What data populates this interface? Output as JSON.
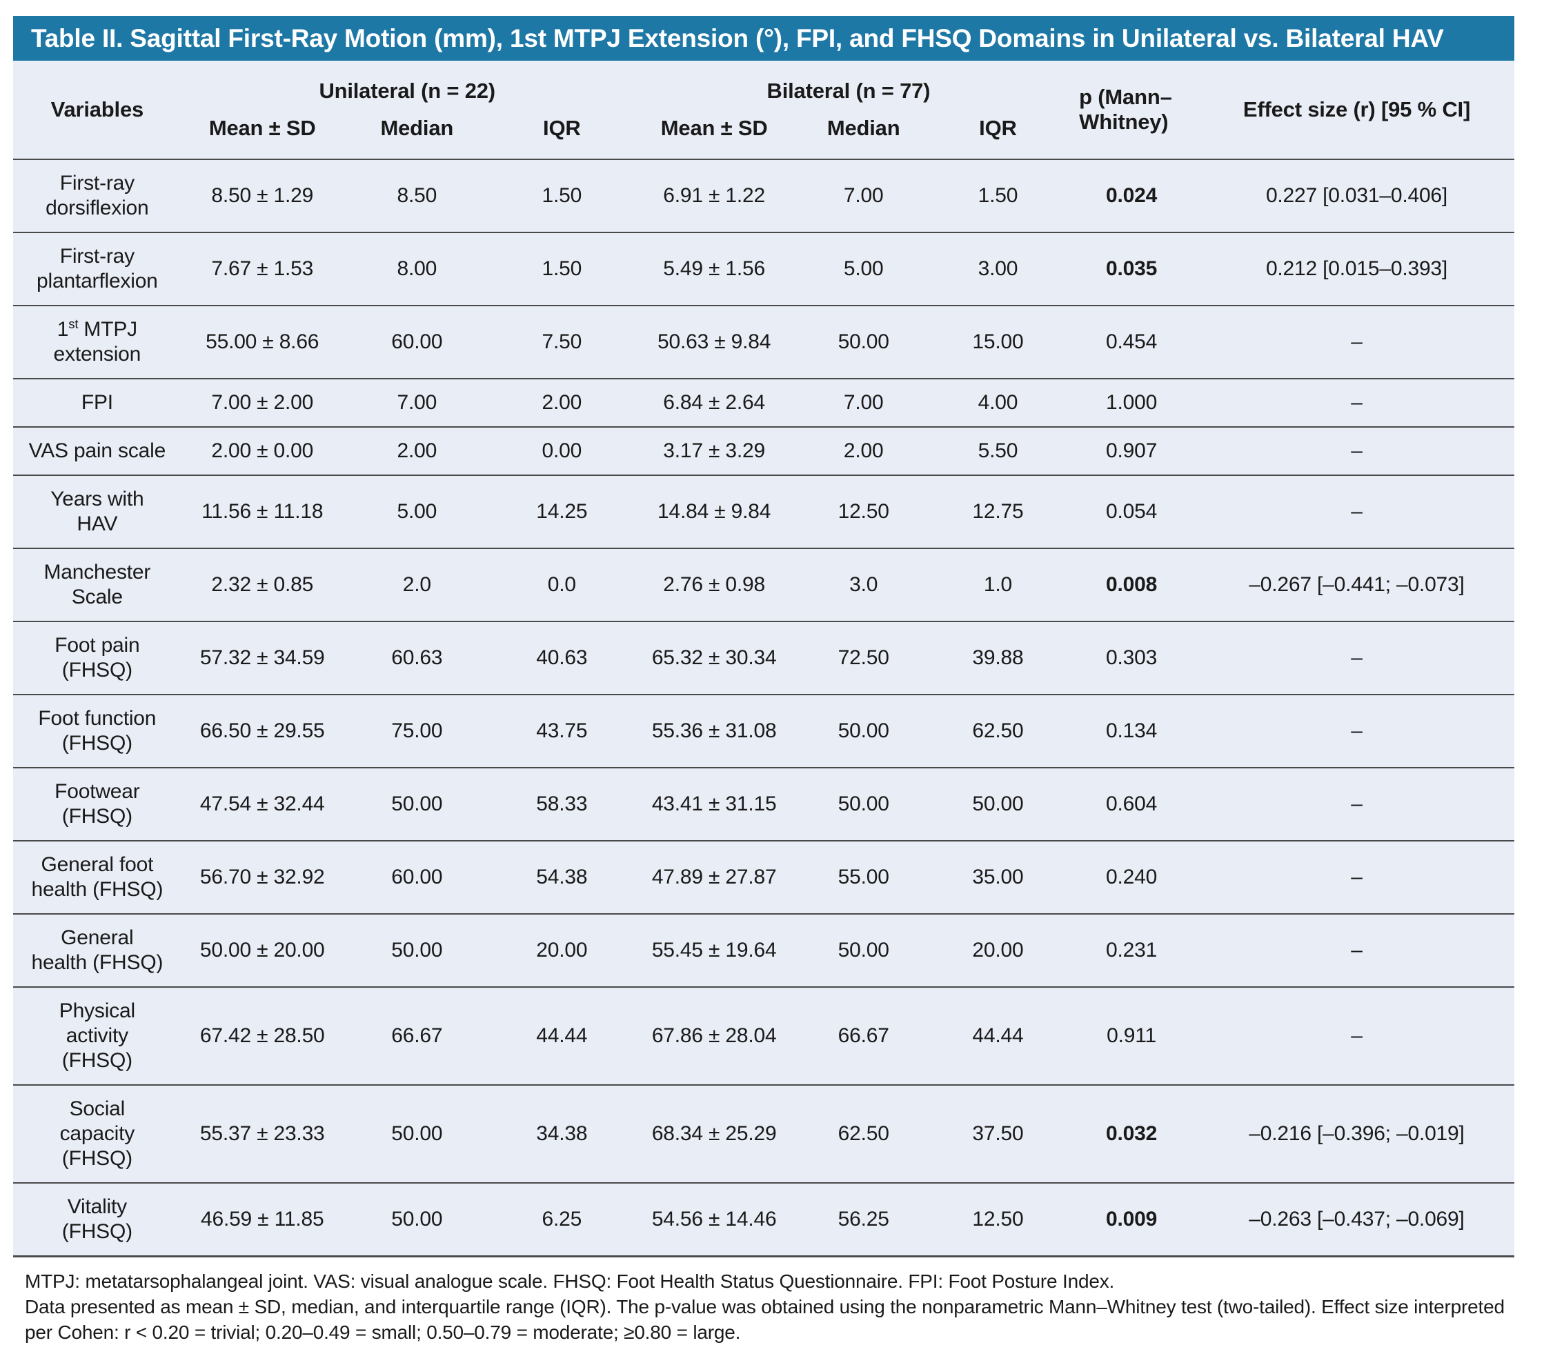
{
  "title": "Table II. Sagittal First-Ray Motion (mm), 1st MTPJ Extension (°), FPI, and FHSQ Domains in Unilateral vs. Bilateral HAV",
  "header": {
    "variables": "Variables",
    "unilateral": "Unilateral (n = 22)",
    "bilateral": "Bilateral (n = 77)",
    "sub": {
      "mean_sd": "Mean ± SD",
      "median": "Median",
      "iqr": "IQR"
    },
    "p_mann_whitney": "p (Mann–\nWhitney)",
    "effect_size": "Effect size (r) [95 % CI]"
  },
  "rows": [
    {
      "label": "First-ray\ndorsiflexion",
      "uni": [
        "8.50 ± 1.29",
        "8.50",
        "1.50"
      ],
      "bil": [
        "6.91 ± 1.22",
        "7.00",
        "1.50"
      ],
      "p": "0.024",
      "p_bold": true,
      "effect": "0.227 [0.031–0.406]"
    },
    {
      "label": "First-ray\nplantarflexion",
      "uni": [
        "7.67 ± 1.53",
        "8.00",
        "1.50"
      ],
      "bil": [
        "5.49 ± 1.56",
        "5.00",
        "3.00"
      ],
      "p": "0.035",
      "p_bold": true,
      "effect": "0.212 [0.015–0.393]"
    },
    {
      "label": "1st MTPJ\nextension",
      "label_parts": [
        "1",
        "st",
        " MTPJ\nextension"
      ],
      "uni": [
        "55.00 ± 8.66",
        "60.00",
        "7.50"
      ],
      "bil": [
        "50.63 ± 9.84",
        "50.00",
        "15.00"
      ],
      "p": "0.454",
      "p_bold": false,
      "effect": "–"
    },
    {
      "label": "FPI",
      "uni": [
        "7.00 ± 2.00",
        "7.00",
        "2.00"
      ],
      "bil": [
        "6.84 ± 2.64",
        "7.00",
        "4.00"
      ],
      "p": "1.000",
      "p_bold": false,
      "effect": "–"
    },
    {
      "label": "VAS pain scale",
      "uni": [
        "2.00 ± 0.00",
        "2.00",
        "0.00"
      ],
      "bil": [
        "3.17 ± 3.29",
        "2.00",
        "5.50"
      ],
      "p": "0.907",
      "p_bold": false,
      "effect": "–"
    },
    {
      "label": "Years with\nHAV",
      "uni": [
        "11.56 ± 11.18",
        "5.00",
        "14.25"
      ],
      "bil": [
        "14.84 ± 9.84",
        "12.50",
        "12.75"
      ],
      "p": "0.054",
      "p_bold": false,
      "effect": "–"
    },
    {
      "label": "Manchester\nScale",
      "uni": [
        "2.32 ± 0.85",
        "2.0",
        "0.0"
      ],
      "bil": [
        "2.76 ± 0.98",
        "3.0",
        "1.0"
      ],
      "p": "0.008",
      "p_bold": true,
      "effect": "–0.267 [–0.441; –0.073]"
    },
    {
      "label": "Foot pain\n(FHSQ)",
      "uni": [
        "57.32 ± 34.59",
        "60.63",
        "40.63"
      ],
      "bil": [
        "65.32 ± 30.34",
        "72.50",
        "39.88"
      ],
      "p": "0.303",
      "p_bold": false,
      "effect": "–"
    },
    {
      "label": "Foot function\n(FHSQ)",
      "uni": [
        "66.50 ± 29.55",
        "75.00",
        "43.75"
      ],
      "bil": [
        "55.36 ± 31.08",
        "50.00",
        "62.50"
      ],
      "p": "0.134",
      "p_bold": false,
      "effect": "–"
    },
    {
      "label": "Footwear\n(FHSQ)",
      "uni": [
        "47.54 ± 32.44",
        "50.00",
        "58.33"
      ],
      "bil": [
        "43.41 ± 31.15",
        "50.00",
        "50.00"
      ],
      "p": "0.604",
      "p_bold": false,
      "effect": "–"
    },
    {
      "label": "General foot\nhealth (FHSQ)",
      "uni": [
        "56.70 ± 32.92",
        "60.00",
        "54.38"
      ],
      "bil": [
        "47.89 ± 27.87",
        "55.00",
        "35.00"
      ],
      "p": "0.240",
      "p_bold": false,
      "effect": "–"
    },
    {
      "label": "General\nhealth (FHSQ)",
      "uni": [
        "50.00 ± 20.00",
        "50.00",
        "20.00"
      ],
      "bil": [
        "55.45 ± 19.64",
        "50.00",
        "20.00"
      ],
      "p": "0.231",
      "p_bold": false,
      "effect": "–"
    },
    {
      "label": "Physical\nactivity\n(FHSQ)",
      "uni": [
        "67.42 ± 28.50",
        "66.67",
        "44.44"
      ],
      "bil": [
        "67.86 ± 28.04",
        "66.67",
        "44.44"
      ],
      "p": "0.911",
      "p_bold": false,
      "effect": "–"
    },
    {
      "label": "Social\ncapacity\n(FHSQ)",
      "uni": [
        "55.37 ± 23.33",
        "50.00",
        "34.38"
      ],
      "bil": [
        "68.34 ± 25.29",
        "62.50",
        "37.50"
      ],
      "p": "0.032",
      "p_bold": true,
      "effect": "–0.216 [–0.396; –0.019]"
    },
    {
      "label": "Vitality\n(FHSQ)",
      "uni": [
        "46.59 ± 11.85",
        "50.00",
        "6.25"
      ],
      "bil": [
        "54.56 ± 14.46",
        "56.25",
        "12.50"
      ],
      "p": "0.009",
      "p_bold": true,
      "effect": "–0.263 [–0.437; –0.069]"
    }
  ],
  "footnotes": [
    "MTPJ: metatarsophalangeal joint. VAS: visual analogue scale. FHSQ: Foot Health Status Questionnaire. FPI: Foot Posture Index.",
    "Data presented as mean ± SD, median, and interquartile range (IQR). The p-value was obtained using the nonparametric Mann–Whitney test (two-tailed). Effect size interpreted per Cohen: r < 0.20 = trivial; 0.20–0.49 = small; 0.50–0.79 = moderate; ≥0.80 = large."
  ],
  "colors": {
    "title_bar_bg": "#1e78a6",
    "title_text": "#ffffff",
    "table_bg": "#e9edf6",
    "divider_line": "#4a4a4a",
    "body_text": "#1a1a1a"
  }
}
